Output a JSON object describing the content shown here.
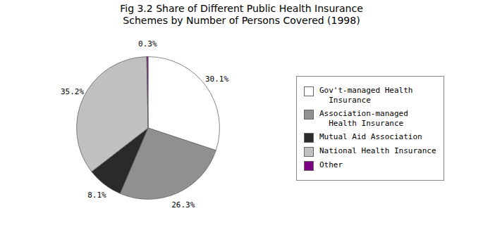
{
  "chart_data": {
    "type": "pie",
    "title": "Fig 3.2 Share of Different Public Health Insurance\nSchemes by Number of Persons Covered (1998)",
    "categories": [
      "Gov't-managed Health\n  Insurance",
      "Association-managed\n  Health Insurance",
      "Mutual Aid Association",
      "National Health Insurance",
      "Other"
    ],
    "values": [
      30.1,
      26.3,
      8.1,
      35.2,
      0.3
    ],
    "value_labels": [
      "30.1%",
      "26.3%",
      "8.1%",
      "35.2%",
      "0.3%"
    ],
    "colors": [
      "#FFFFFF",
      "#909090",
      "#2A2A2A",
      "#C0C0C0",
      "#7B0080"
    ],
    "data_labels": true,
    "legend": "right"
  }
}
